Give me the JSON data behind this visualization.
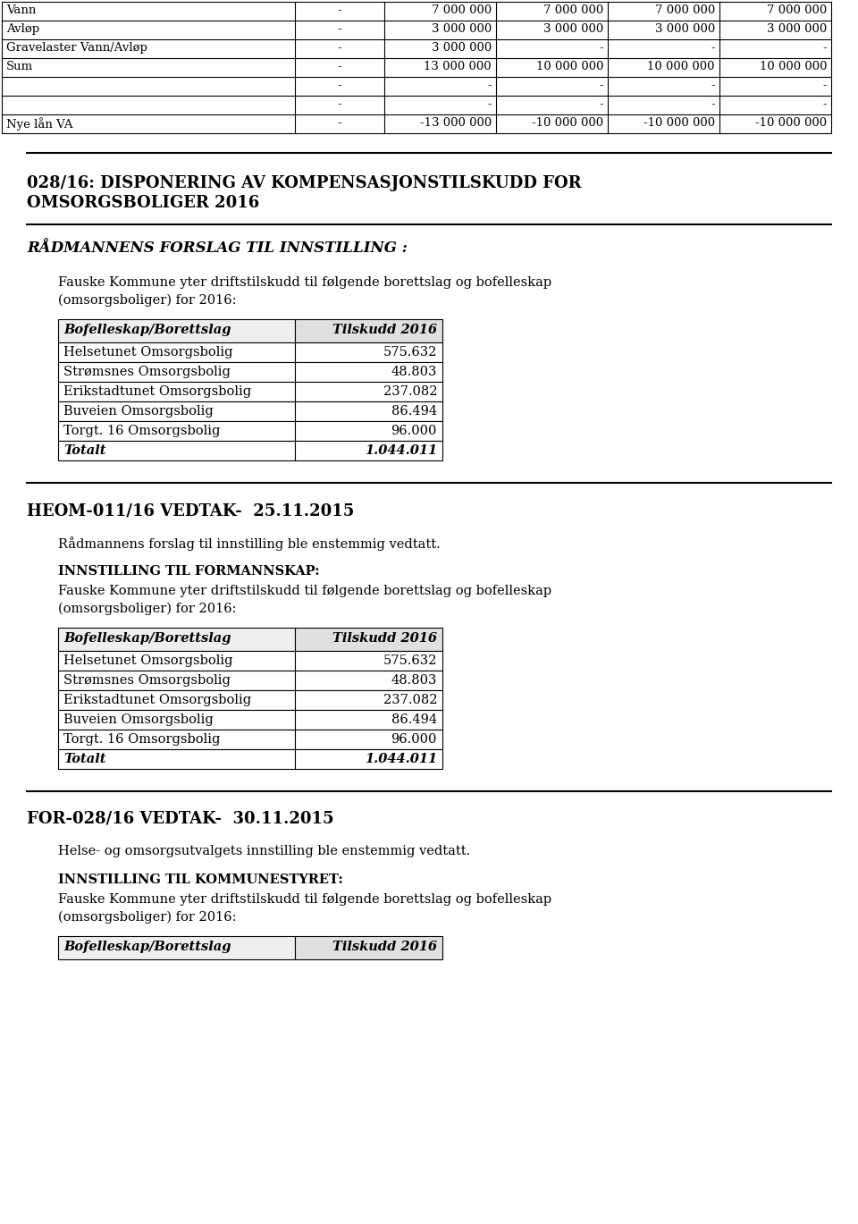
{
  "bg_color": "#ffffff",
  "top_table_rows": [
    [
      "Vann",
      "-",
      "7 000 000",
      "7 000 000",
      "7 000 000",
      "7 000 000"
    ],
    [
      "Avløp",
      "-",
      "3 000 000",
      "3 000 000",
      "3 000 000",
      "3 000 000"
    ],
    [
      "Gravelaster Vann/Avløp",
      "-",
      "3 000 000",
      "-",
      "-",
      "-"
    ],
    [
      "Sum",
      "-",
      "13 000 000",
      "10 000 000",
      "10 000 000",
      "10 000 000"
    ],
    [
      "",
      "-",
      "-",
      "-",
      "-",
      "-"
    ],
    [
      "",
      "-",
      "-",
      "-",
      "-",
      "-"
    ],
    [
      "Nye lån VA",
      "-",
      "-13 000 000",
      "-10 000 000",
      "-10 000 000",
      "-10 000 000"
    ]
  ],
  "section1_title_line1": "028/16: DISPONERING AV KOMPENSASJONSTILSKUDD FOR",
  "section1_title_line2": "OMSORGSBOLIGER 2016",
  "section1_heading": "RÅDMANNENS FORSLAG TIL INNSTILLING :",
  "section1_body_line1": "Fauske Kommune yter driftstilskudd til følgende borettslag og bofelleskap",
  "section1_body_line2": "(omsorgsboliger) for 2016:",
  "table_header": [
    "Bofelleskap/Borettslag",
    "Tilskudd 2016"
  ],
  "table_rows": [
    [
      "Helsetunet Omsorgsbolig",
      "575.632"
    ],
    [
      "Strømsnes Omsorgsbolig",
      "48.803"
    ],
    [
      "Erikstadtunet Omsorgsbolig",
      "237.082"
    ],
    [
      "Buveien Omsorgsbolig",
      "86.494"
    ],
    [
      "Torgt. 16 Omsorgsbolig",
      "96.000"
    ],
    [
      "Totalt",
      "1.044.011"
    ]
  ],
  "section2_title": "HEOM-011/16 VEDTAK-  25.11.2015",
  "section2_body1": "Rådmannens forslag til innstilling ble enstemmig vedtatt.",
  "section2_sub_heading": "INNSTILLING TIL FORMANNSKAP:",
  "section2_body_line1": "Fauske Kommune yter driftstilskudd til følgende borettslag og bofelleskap",
  "section2_body_line2": "(omsorgsboliger) for 2016:",
  "section3_title": "FOR-028/16 VEDTAK-  30.11.2015",
  "section3_body1": "Helse- og omsorgsutvalgets innstilling ble enstemmig vedtatt.",
  "section3_sub_heading": "INNSTILLING TIL KOMMUNESTYRET:",
  "section3_body_line1": "Fauske Kommune yter driftstilskudd til følgende borettslag og bofelleskap",
  "section3_body_line2": "(omsorgsboliger) for 2016:",
  "table3_header": [
    "Bofelleskap/Borettslag",
    "Tilskudd 2016"
  ],
  "text_color": "#000000"
}
